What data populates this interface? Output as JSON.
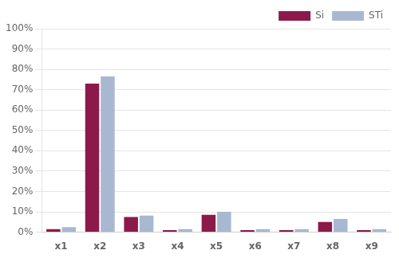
{
  "chart_data": {
    "type": "bar",
    "categories": [
      "x1",
      "x2",
      "x3",
      "x4",
      "x5",
      "x6",
      "x7",
      "x8",
      "x9"
    ],
    "series": [
      {
        "name": "Si",
        "color": "#8B1A4A",
        "values": [
          0.015,
          0.73,
          0.075,
          0.01,
          0.085,
          0.01,
          0.01,
          0.05,
          0.01
        ]
      },
      {
        "name": "STi",
        "color": "#A8B8D0",
        "values": [
          0.025,
          0.765,
          0.082,
          0.015,
          0.1,
          0.015,
          0.015,
          0.065,
          0.015
        ]
      }
    ],
    "ylim": [
      0,
      1.0
    ],
    "yticks": [
      {
        "value": 0.0,
        "label": "0%"
      },
      {
        "value": 0.1,
        "label": "10%"
      },
      {
        "value": 0.2,
        "label": "20%"
      },
      {
        "value": 0.3,
        "label": "30%"
      },
      {
        "value": 0.4,
        "label": "40%"
      },
      {
        "value": 0.5,
        "label": "50%"
      },
      {
        "value": 0.6,
        "label": "60%"
      },
      {
        "value": 0.7,
        "label": "70%"
      },
      {
        "value": 0.8,
        "label": "80%"
      },
      {
        "value": 0.9,
        "label": "90%"
      },
      {
        "value": 1.0,
        "label": "100%"
      }
    ],
    "grid": true,
    "legend": "upper right"
  }
}
